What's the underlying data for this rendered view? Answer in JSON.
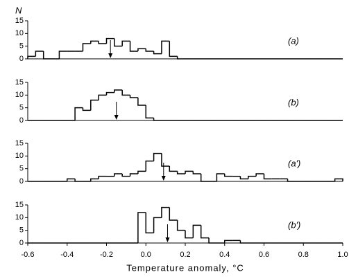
{
  "chart_data": [
    {
      "type": "histogram",
      "label": "(a)",
      "ylabel": "N",
      "mean_arrow": -0.18,
      "bins": [
        -0.6,
        -0.56,
        -0.52,
        -0.48,
        -0.44,
        -0.4,
        -0.36,
        -0.32,
        -0.28,
        -0.24,
        -0.2,
        -0.16,
        -0.12,
        -0.08,
        -0.04,
        0,
        0.04,
        0.08,
        0.12,
        0.16,
        0.2,
        0.24,
        0.28,
        0.32,
        0.36,
        0.4,
        0.44,
        0.48,
        0.52,
        0.56,
        0.6,
        0.64,
        0.68,
        0.72,
        0.76,
        0.8,
        0.84,
        0.88,
        0.92,
        0.96,
        1.0
      ],
      "values": [
        1,
        3,
        0,
        0,
        3,
        3,
        3,
        6,
        7,
        6,
        8,
        5,
        7,
        3,
        4,
        3,
        2,
        7,
        1,
        0,
        0,
        0,
        0,
        0,
        0,
        0,
        0,
        0,
        0,
        0,
        0,
        0,
        0,
        0,
        0,
        0,
        0,
        0,
        0,
        0
      ],
      "xlim": [
        -0.6,
        1.0
      ],
      "ylim": [
        0,
        15
      ],
      "yticks": [
        0,
        5,
        10,
        15
      ],
      "color": "#000000"
    },
    {
      "type": "histogram",
      "label": "(b)",
      "mean_arrow": -0.15,
      "bins": [
        -0.6,
        -0.56,
        -0.52,
        -0.48,
        -0.44,
        -0.4,
        -0.36,
        -0.32,
        -0.28,
        -0.24,
        -0.2,
        -0.16,
        -0.12,
        -0.08,
        -0.04,
        0,
        0.04,
        0.08,
        0.12,
        0.16,
        0.2,
        0.24,
        0.28,
        0.32,
        0.36,
        0.4,
        0.44,
        0.48,
        0.52,
        0.56,
        0.6,
        0.64,
        0.68,
        0.72,
        0.76,
        0.8,
        0.84,
        0.88,
        0.92,
        0.96,
        1.0
      ],
      "values": [
        0,
        0,
        0,
        0,
        0,
        0,
        5,
        4,
        8,
        10,
        11,
        12,
        10,
        9,
        6,
        1,
        0,
        0,
        0,
        0,
        0,
        0,
        0,
        0,
        0,
        0,
        0,
        0,
        0,
        0,
        0,
        0,
        0,
        0,
        0,
        0,
        0,
        0,
        0,
        0
      ],
      "xlim": [
        -0.6,
        1.0
      ],
      "ylim": [
        0,
        15
      ],
      "yticks": [
        0,
        5,
        10,
        15
      ],
      "color": "#000000"
    },
    {
      "type": "histogram",
      "label": "(a')",
      "mean_arrow": 0.09,
      "bins": [
        -0.6,
        -0.56,
        -0.52,
        -0.48,
        -0.44,
        -0.4,
        -0.36,
        -0.32,
        -0.28,
        -0.24,
        -0.2,
        -0.16,
        -0.12,
        -0.08,
        -0.04,
        0,
        0.04,
        0.08,
        0.12,
        0.16,
        0.2,
        0.24,
        0.28,
        0.32,
        0.36,
        0.4,
        0.44,
        0.48,
        0.52,
        0.56,
        0.6,
        0.64,
        0.68,
        0.72,
        0.76,
        0.8,
        0.84,
        0.88,
        0.92,
        0.96,
        1.0
      ],
      "values": [
        0,
        0,
        0,
        0,
        0,
        1,
        0,
        0,
        1,
        2,
        2,
        3,
        2,
        3,
        4,
        8,
        11,
        6,
        4,
        3,
        4,
        3,
        0,
        0,
        3,
        2,
        2,
        1,
        2,
        3,
        1,
        1,
        1,
        0,
        0,
        0,
        0,
        0,
        0,
        1
      ],
      "xlim": [
        -0.6,
        1.0
      ],
      "ylim": [
        0,
        15
      ],
      "yticks": [
        0,
        5,
        10,
        15
      ],
      "color": "#000000"
    },
    {
      "type": "histogram",
      "label": "(b')",
      "mean_arrow": 0.11,
      "xlabel": "Temperature anomaly, °C",
      "bins": [
        -0.6,
        -0.56,
        -0.52,
        -0.48,
        -0.44,
        -0.4,
        -0.36,
        -0.32,
        -0.28,
        -0.24,
        -0.2,
        -0.16,
        -0.12,
        -0.08,
        -0.04,
        0,
        0.04,
        0.08,
        0.12,
        0.16,
        0.2,
        0.24,
        0.28,
        0.32,
        0.36,
        0.4,
        0.44,
        0.48,
        0.52,
        0.56,
        0.6,
        0.64,
        0.68,
        0.72,
        0.76,
        0.8,
        0.84,
        0.88,
        0.92,
        0.96,
        1.0
      ],
      "values": [
        0,
        0,
        0,
        0,
        0,
        0,
        0,
        0,
        0,
        0,
        0,
        0,
        0,
        0,
        12,
        4,
        10,
        14,
        9,
        5,
        2,
        7,
        2,
        0,
        0,
        1,
        1,
        0,
        0,
        0,
        0,
        0,
        0,
        0,
        0,
        0,
        0,
        0,
        0,
        0
      ],
      "xlim": [
        -0.6,
        1.0
      ],
      "ylim": [
        0,
        15
      ],
      "yticks": [
        0,
        5,
        10,
        15
      ],
      "color": "#000000",
      "xticks": [
        -0.6,
        -0.4,
        -0.2,
        {
          "value": 0,
          "label": "0.0"
        },
        0.2,
        0.4,
        0.6,
        0.8,
        {
          "value": 1,
          "label": "1.0"
        }
      ]
    }
  ]
}
